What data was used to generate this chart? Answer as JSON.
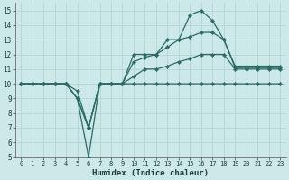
{
  "xlabel": "Humidex (Indice chaleur)",
  "xlim": [
    -0.5,
    23.5
  ],
  "ylim": [
    5,
    15.5
  ],
  "xticks": [
    0,
    1,
    2,
    3,
    4,
    5,
    6,
    7,
    8,
    9,
    10,
    11,
    12,
    13,
    14,
    15,
    16,
    17,
    18,
    19,
    20,
    21,
    22,
    23
  ],
  "yticks": [
    5,
    6,
    7,
    8,
    9,
    10,
    11,
    12,
    13,
    14,
    15
  ],
  "bg_color": "#cde8e8",
  "line_color": "#2a6b65",
  "grid_color": "#b8d8d8",
  "lines": [
    {
      "x": [
        0,
        1,
        2,
        3,
        4,
        5,
        6,
        7,
        8,
        9,
        10,
        11,
        12,
        13,
        14,
        15,
        16,
        17,
        18,
        19,
        20,
        21,
        22,
        23
      ],
      "y": [
        10,
        10,
        10,
        10,
        10,
        9.0,
        5,
        10,
        10,
        10,
        10,
        10,
        10,
        10,
        10,
        10,
        10,
        10,
        10,
        10,
        10,
        10,
        10,
        10
      ]
    },
    {
      "x": [
        0,
        1,
        2,
        3,
        4,
        5,
        6,
        7,
        8,
        9,
        10,
        11,
        12,
        13,
        14,
        15,
        16,
        17,
        18,
        19,
        20,
        21,
        22,
        23
      ],
      "y": [
        10,
        10,
        10,
        10,
        10,
        9.0,
        7.0,
        10,
        10,
        10,
        12.0,
        12.0,
        12.0,
        13.0,
        13.0,
        14.7,
        15.0,
        14.3,
        13.0,
        11.2,
        11.2,
        11.2,
        11.2,
        11.2
      ]
    },
    {
      "x": [
        0,
        1,
        2,
        3,
        4,
        5,
        6,
        7,
        8,
        9,
        10,
        11,
        12,
        13,
        14,
        15,
        16,
        17,
        18,
        19,
        20,
        21,
        22,
        23
      ],
      "y": [
        10,
        10,
        10,
        10,
        10,
        9.0,
        7.0,
        10,
        10,
        10,
        11.5,
        11.8,
        12.0,
        12.5,
        13.0,
        13.2,
        13.5,
        13.5,
        13.0,
        11.1,
        11.1,
        11.1,
        11.1,
        11.1
      ]
    },
    {
      "x": [
        0,
        1,
        2,
        3,
        4,
        5,
        6,
        7,
        8,
        9,
        10,
        11,
        12,
        13,
        14,
        15,
        16,
        17,
        18,
        19,
        20,
        21,
        22,
        23
      ],
      "y": [
        10,
        10,
        10,
        10,
        10,
        9.5,
        7.0,
        10,
        10,
        10,
        10.5,
        11.0,
        11.0,
        11.2,
        11.5,
        11.7,
        12.0,
        12.0,
        12.0,
        11.0,
        11.0,
        11.0,
        11.0,
        11.0
      ]
    }
  ]
}
